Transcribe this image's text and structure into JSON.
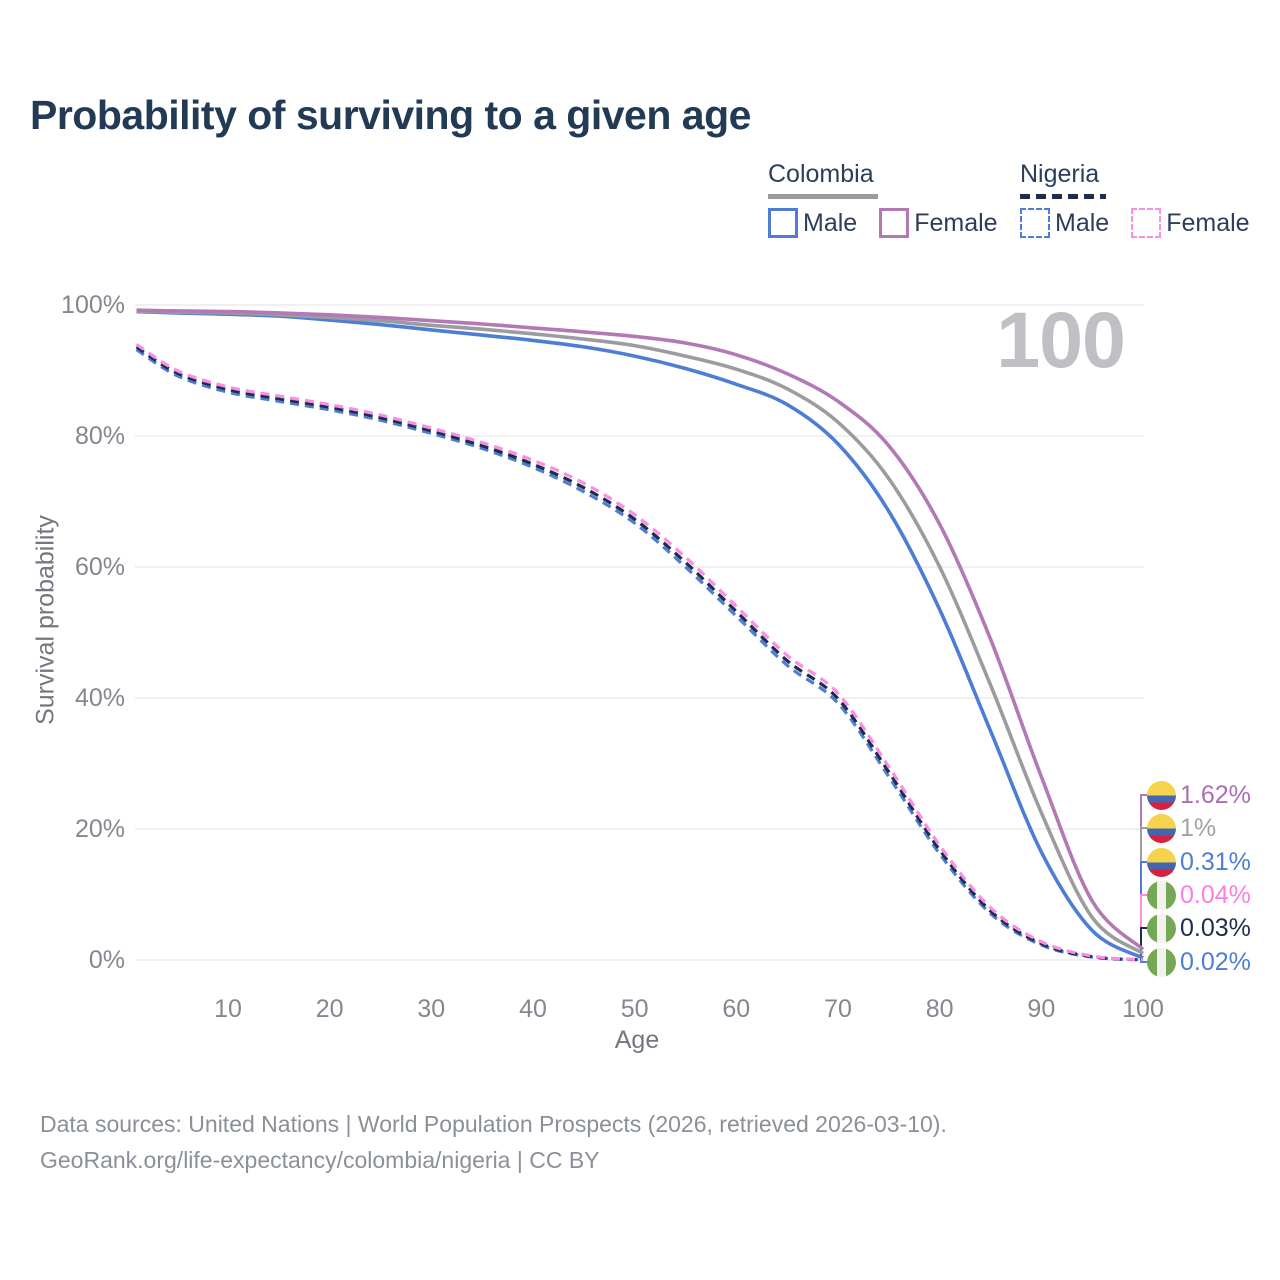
{
  "title": "Probability of surviving to a given age",
  "legend": {
    "colombia": {
      "name": "Colombia",
      "male": "Male",
      "female": "Female"
    },
    "nigeria": {
      "name": "Nigeria",
      "male": "Male",
      "female": "Female"
    }
  },
  "watermark": "100",
  "footer": {
    "line1": "Data sources: United Nations | World Population Prospects (2026, retrieved 2026-03-10).",
    "line2": "GeoRank.org/life-expectancy/colombia/nigeria | CC BY"
  },
  "colors": {
    "colombia_male": "#4e7dd5",
    "colombia_female": "#b279b5",
    "colombia_total": "#9c9ca0",
    "nigeria_male": "#4e7dd5",
    "nigeria_female": "#fa8ee4",
    "nigeria_total": "#1f2c4c",
    "gridline": "#ececee",
    "tick_text": "#84878f",
    "title_text": "#223a54",
    "watermark_text": "#c0c0c4"
  },
  "right_labels": [
    {
      "flag": "colombia",
      "text": "1.62%",
      "color": "#a96fb2"
    },
    {
      "flag": "colombia",
      "text": "1%",
      "color": "#a2a2a6"
    },
    {
      "flag": "colombia",
      "text": "0.31%",
      "color": "#4e7dd5"
    },
    {
      "flag": "nigeria",
      "text": "0.04%",
      "color": "#fa7fe1"
    },
    {
      "flag": "nigeria",
      "text": "0.03%",
      "color": "#222f4e"
    },
    {
      "flag": "nigeria",
      "text": "0.02%",
      "color": "#4e7dd5"
    }
  ],
  "chart_data": {
    "type": "line",
    "title": "Probability of surviving to a given age",
    "xlabel": "Age",
    "ylabel": "Survival probability",
    "xlim": [
      0,
      100
    ],
    "ylim": [
      0,
      100
    ],
    "grid": "horizontal",
    "x_ticks": [
      10,
      20,
      30,
      40,
      50,
      60,
      70,
      80,
      90,
      100
    ],
    "y_ticks": [
      "0%",
      "20%",
      "40%",
      "60%",
      "80%",
      "100%"
    ],
    "y_tick_values": [
      0,
      20,
      40,
      60,
      80,
      100
    ],
    "hovered_age": 100,
    "series": [
      {
        "key": "colombia_female",
        "name": "Colombia Female",
        "color": "#b279b5",
        "dash": false,
        "end_label": "1.62%",
        "points": [
          [
            1,
            99.2
          ],
          [
            5,
            99.1
          ],
          [
            10,
            99.0
          ],
          [
            15,
            98.8
          ],
          [
            20,
            98.5
          ],
          [
            25,
            98.1
          ],
          [
            30,
            97.6
          ],
          [
            35,
            97.1
          ],
          [
            40,
            96.5
          ],
          [
            45,
            95.9
          ],
          [
            50,
            95.2
          ],
          [
            55,
            94.2
          ],
          [
            60,
            92.4
          ],
          [
            65,
            89.5
          ],
          [
            70,
            85.3
          ],
          [
            75,
            78.5
          ],
          [
            80,
            66.5
          ],
          [
            85,
            49.0
          ],
          [
            90,
            28.0
          ],
          [
            95,
            9.0
          ],
          [
            100,
            1.62
          ]
        ]
      },
      {
        "key": "colombia_total",
        "name": "Colombia Total",
        "color": "#9c9ca0",
        "dash": false,
        "end_label": "1%",
        "points": [
          [
            1,
            99.1
          ],
          [
            5,
            98.9
          ],
          [
            10,
            98.8
          ],
          [
            15,
            98.5
          ],
          [
            20,
            98.1
          ],
          [
            25,
            97.6
          ],
          [
            30,
            96.9
          ],
          [
            35,
            96.3
          ],
          [
            40,
            95.6
          ],
          [
            45,
            94.8
          ],
          [
            50,
            93.8
          ],
          [
            55,
            92.2
          ],
          [
            60,
            90.2
          ],
          [
            65,
            87.2
          ],
          [
            70,
            82.1
          ],
          [
            75,
            73.5
          ],
          [
            80,
            60.0
          ],
          [
            85,
            42.0
          ],
          [
            90,
            22.5
          ],
          [
            95,
            6.5
          ],
          [
            100,
            1.0
          ]
        ]
      },
      {
        "key": "colombia_male",
        "name": "Colombia Male",
        "color": "#4e7dd5",
        "dash": false,
        "end_label": "0.31%",
        "points": [
          [
            1,
            99.0
          ],
          [
            5,
            98.8
          ],
          [
            10,
            98.6
          ],
          [
            15,
            98.3
          ],
          [
            20,
            97.7
          ],
          [
            25,
            97.0
          ],
          [
            30,
            96.2
          ],
          [
            35,
            95.4
          ],
          [
            40,
            94.6
          ],
          [
            45,
            93.6
          ],
          [
            50,
            92.2
          ],
          [
            55,
            90.3
          ],
          [
            60,
            87.9
          ],
          [
            65,
            84.8
          ],
          [
            70,
            78.8
          ],
          [
            75,
            68.5
          ],
          [
            80,
            53.5
          ],
          [
            85,
            35.0
          ],
          [
            90,
            16.5
          ],
          [
            95,
            4.5
          ],
          [
            100,
            0.31
          ]
        ]
      },
      {
        "key": "nigeria_female",
        "name": "Nigeria Female",
        "color": "#fa8ee4",
        "dash": true,
        "end_label": "0.04%",
        "points": [
          [
            1,
            94.0
          ],
          [
            5,
            90.0
          ],
          [
            10,
            87.5
          ],
          [
            15,
            86.1
          ],
          [
            20,
            84.8
          ],
          [
            25,
            83.2
          ],
          [
            30,
            81.2
          ],
          [
            35,
            79.0
          ],
          [
            40,
            76.3
          ],
          [
            45,
            72.8
          ],
          [
            50,
            68.0
          ],
          [
            55,
            61.5
          ],
          [
            60,
            54.0
          ],
          [
            65,
            46.5
          ],
          [
            70,
            40.7
          ],
          [
            75,
            29.5
          ],
          [
            80,
            17.5
          ],
          [
            85,
            8.0
          ],
          [
            90,
            2.8
          ],
          [
            95,
            0.6
          ],
          [
            100,
            0.04
          ]
        ]
      },
      {
        "key": "nigeria_total",
        "name": "Nigeria Total",
        "color": "#1f2c4c",
        "dash": true,
        "end_label": "0.03%",
        "points": [
          [
            1,
            93.6
          ],
          [
            5,
            89.6
          ],
          [
            10,
            87.1
          ],
          [
            15,
            85.7
          ],
          [
            20,
            84.4
          ],
          [
            25,
            82.8
          ],
          [
            30,
            80.8
          ],
          [
            35,
            78.5
          ],
          [
            40,
            75.7
          ],
          [
            45,
            72.1
          ],
          [
            50,
            67.3
          ],
          [
            55,
            60.7
          ],
          [
            60,
            53.2
          ],
          [
            65,
            45.7
          ],
          [
            70,
            39.9
          ],
          [
            75,
            28.7
          ],
          [
            80,
            16.8
          ],
          [
            85,
            7.5
          ],
          [
            90,
            2.5
          ],
          [
            95,
            0.5
          ],
          [
            100,
            0.03
          ]
        ]
      },
      {
        "key": "nigeria_male",
        "name": "Nigeria Male",
        "color": "#4e7dd5",
        "dash": true,
        "end_label": "0.02%",
        "points": [
          [
            1,
            93.2
          ],
          [
            5,
            89.2
          ],
          [
            10,
            86.7
          ],
          [
            15,
            85.3
          ],
          [
            20,
            84.0
          ],
          [
            25,
            82.4
          ],
          [
            30,
            80.4
          ],
          [
            35,
            78.1
          ],
          [
            40,
            75.2
          ],
          [
            45,
            71.5
          ],
          [
            50,
            66.7
          ],
          [
            55,
            60.0
          ],
          [
            60,
            52.5
          ],
          [
            65,
            45.0
          ],
          [
            70,
            39.2
          ],
          [
            75,
            28.0
          ],
          [
            80,
            16.2
          ],
          [
            85,
            7.1
          ],
          [
            90,
            2.3
          ],
          [
            95,
            0.45
          ],
          [
            100,
            0.02
          ]
        ]
      }
    ],
    "legend_position": "top-right"
  }
}
